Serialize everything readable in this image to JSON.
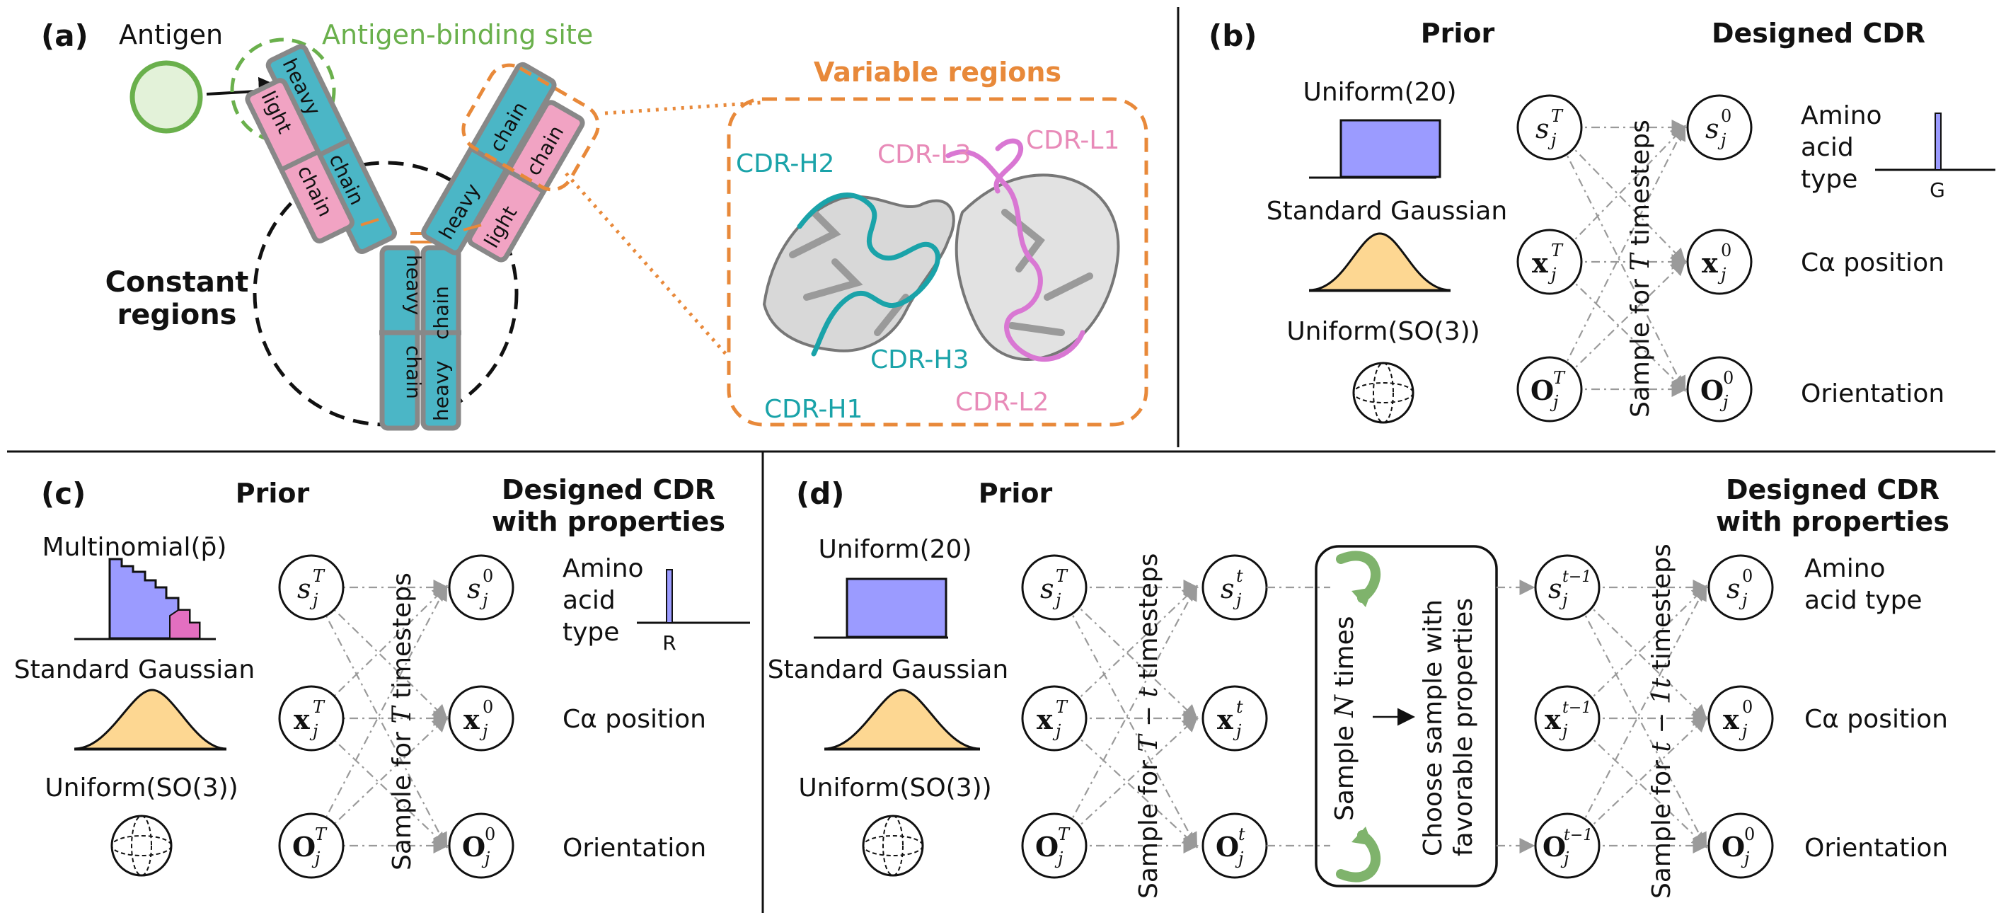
{
  "panel_a": {
    "tag": "(a)",
    "antigen": "Antigen",
    "binding_site": "Antigen-binding site",
    "variable_regions": "Variable regions",
    "constant_regions": [
      "Constant",
      "regions"
    ],
    "heavy": "heavy",
    "chain": "chain",
    "light": "light",
    "cdr": {
      "h1": "CDR-H1",
      "h2": "CDR-H2",
      "h3": "CDR-H3",
      "l1": "CDR-L1",
      "l2": "CDR-L2",
      "l3": "CDR-L3"
    }
  },
  "panel_b": {
    "tag": "(b)",
    "prior": "Prior",
    "designed": "Designed CDR",
    "uniform20": "Uniform(20)",
    "gaussian": "Standard Gaussian",
    "so3": "Uniform(SO(3))",
    "sample": "Sample for",
    "sample_T": "T",
    "timesteps": "timesteps",
    "amino": [
      "Amino",
      "acid",
      "type"
    ],
    "aa_tick": "G",
    "ca": "Cα position",
    "orient": "Orientation"
  },
  "panel_c": {
    "tag": "(c)",
    "prior": "Prior",
    "designed": [
      "Designed CDR",
      "with properties"
    ],
    "multinomial": "Multinomial(p̄)",
    "gaussian": "Standard Gaussian",
    "so3": "Uniform(SO(3))",
    "sample": "Sample for",
    "sample_T": "T",
    "timesteps": "timesteps",
    "amino": [
      "Amino",
      "acid",
      "type"
    ],
    "aa_tick": "R",
    "ca": "Cα position",
    "orient": "Orientation"
  },
  "panel_d": {
    "tag": "(d)",
    "prior": "Prior",
    "designed": [
      "Designed CDR",
      "with properties"
    ],
    "uniform20": "Uniform(20)",
    "gaussian": "Standard Gaussian",
    "so3": "Uniform(SO(3))",
    "sample1": "Sample for",
    "sample1_var": "T − t",
    "timesteps": "timesteps",
    "sample_n": "Sample",
    "sample_n_var": "N",
    "sample_n_end": "times",
    "choose": [
      "Choose sample with",
      "favorable properties"
    ],
    "sample2": "Sample for",
    "sample2_var": "t − 1t",
    "amino": [
      "Amino",
      "acid type"
    ],
    "ca": "Cα position",
    "orient": "Orientation"
  },
  "nodes": {
    "s": "s",
    "x": "x",
    "O": "O",
    "supT": "T",
    "sup0": "0",
    "supt": "t",
    "suptm1": "t−1",
    "sub": "j"
  },
  "colors": {
    "heavy": "#4bb6c6",
    "light": "#f1a3c3",
    "frame": "#888888",
    "antigen_fill": "#e3f2d9",
    "antigen_stroke": "#6ab04c",
    "orange": "#e8893a",
    "uniform": "#9b9bff",
    "gauss": "#fdd792",
    "cdrH": "#1aa3a9",
    "cdrL": "#d977d3",
    "arrow_green": "#7fb36c"
  }
}
